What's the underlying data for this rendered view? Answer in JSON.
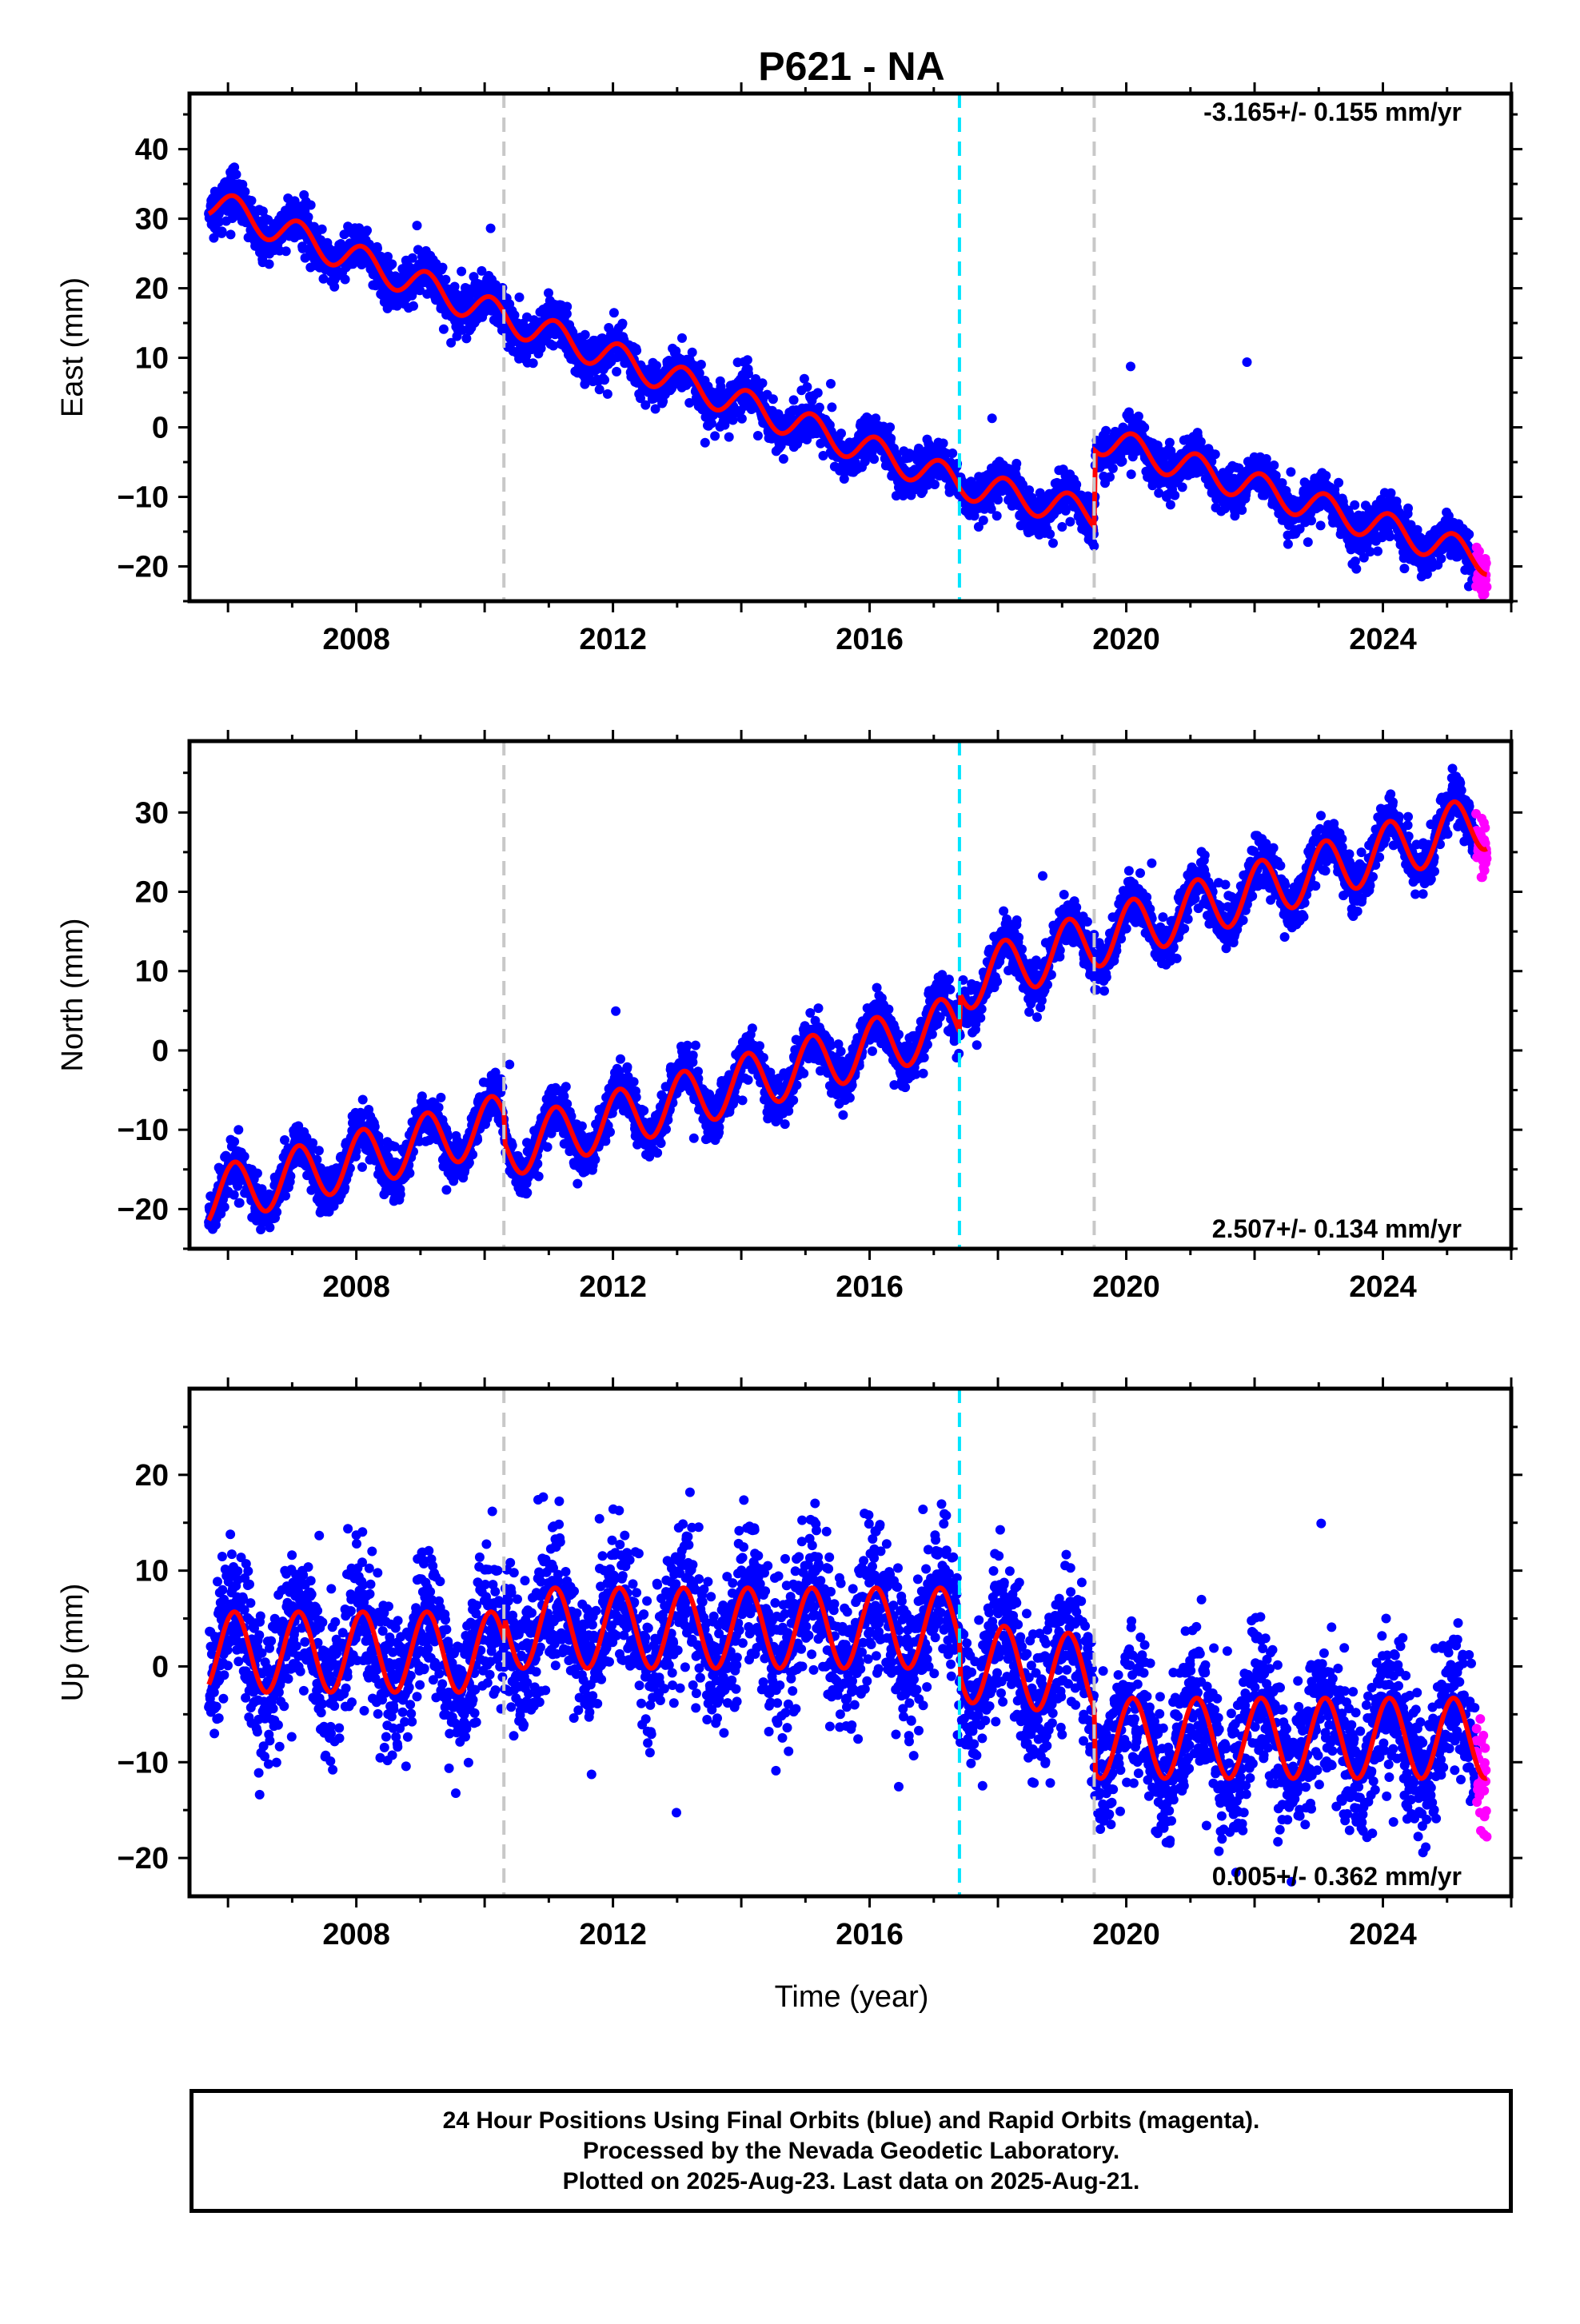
{
  "title": "P621 - NA",
  "xlabel": "Time (year)",
  "caption": [
    "24 Hour Positions Using Final Orbits (blue) and Rapid Orbits (magenta).",
    "Processed by the Nevada Geodetic Laboratory.",
    "Plotted on 2025-Aug-23. Last data on 2025-Aug-21."
  ],
  "colors": {
    "final": "#0000ff",
    "rapid": "#ff00ff",
    "model": "#ff0000",
    "equipment_change": "#c8c8c8",
    "earthquake": "#00e5ff"
  },
  "chart_data": [
    {
      "type": "scatter",
      "component": "east",
      "ylabel": "East (mm)",
      "xlim": [
        2005.4,
        2026.0
      ],
      "ylim": [
        -25,
        48
      ],
      "xticks": [
        2008,
        2012,
        2016,
        2020,
        2024
      ],
      "yticks": [
        -20,
        -10,
        0,
        10,
        20,
        30,
        40
      ],
      "rate_label": "-3.165+/- 0.155 mm/yr",
      "rate_label_position": "top-right",
      "start_year": 2005.7,
      "end_year": 2025.62,
      "rapid_start_year": 2025.45,
      "velocity_mm_per_yr": -3.165,
      "annual_amplitude_mm": 2.2,
      "scatter_mm": 1.6,
      "model_knots": [
        [
          2005.7,
          32.5
        ],
        [
          2010.3,
          15.8
        ],
        [
          2017.4,
          -8.0
        ],
        [
          2019.5,
          -12.5
        ],
        [
          2019.52,
          -1.5
        ],
        [
          2025.62,
          -19.0
        ]
      ],
      "offsets": [
        {
          "year": 2019.5,
          "east_mm": 11.0
        }
      ],
      "vlines": [
        {
          "year": 2010.3,
          "kind": "equipment_change"
        },
        {
          "year": 2017.4,
          "kind": "earthquake"
        },
        {
          "year": 2019.5,
          "kind": "equipment_change"
        }
      ]
    },
    {
      "type": "scatter",
      "component": "north",
      "ylabel": "North (mm)",
      "xlim": [
        2005.4,
        2026.0
      ],
      "ylim": [
        -25,
        39
      ],
      "xticks": [
        2008,
        2012,
        2016,
        2020,
        2024
      ],
      "yticks": [
        -20,
        -10,
        0,
        10,
        20,
        30
      ],
      "rate_label": "2.507+/- 0.134 mm/yr",
      "rate_label_position": "bottom-right",
      "start_year": 2005.7,
      "end_year": 2025.62,
      "rapid_start_year": 2025.45,
      "velocity_mm_per_yr": 2.507,
      "annual_amplitude_mm": 3.6,
      "scatter_mm": 1.5,
      "model_knots": [
        [
          2005.7,
          -18.5
        ],
        [
          2010.3,
          -9.0
        ],
        [
          2010.32,
          -12.5
        ],
        [
          2017.4,
          3.5
        ],
        [
          2017.42,
          8.5
        ],
        [
          2019.5,
          14.0
        ],
        [
          2025.62,
          29.0
        ]
      ],
      "vlines": [
        {
          "year": 2010.3,
          "kind": "equipment_change"
        },
        {
          "year": 2017.4,
          "kind": "earthquake"
        },
        {
          "year": 2019.5,
          "kind": "equipment_change"
        }
      ]
    },
    {
      "type": "scatter",
      "component": "up",
      "ylabel": "Up (mm)",
      "xlim": [
        2005.4,
        2026.0
      ],
      "ylim": [
        -24,
        29
      ],
      "xticks": [
        2008,
        2012,
        2016,
        2020,
        2024
      ],
      "yticks": [
        -20,
        -10,
        0,
        10,
        20
      ],
      "rate_label": "0.005+/- 0.362 mm/yr",
      "rate_label_position": "bottom-right",
      "start_year": 2005.7,
      "end_year": 2025.62,
      "rapid_start_year": 2025.45,
      "velocity_mm_per_yr": 0.005,
      "annual_amplitude_mm": 4.2,
      "scatter_mm": 3.8,
      "model_knots": [
        [
          2005.7,
          1.5
        ],
        [
          2010.3,
          1.5
        ],
        [
          2010.32,
          4.0
        ],
        [
          2017.4,
          4.0
        ],
        [
          2017.42,
          0.5
        ],
        [
          2019.5,
          -1.0
        ],
        [
          2019.52,
          -7.5
        ],
        [
          2025.62,
          -7.5
        ]
      ],
      "vlines": [
        {
          "year": 2010.3,
          "kind": "equipment_change"
        },
        {
          "year": 2017.4,
          "kind": "earthquake"
        },
        {
          "year": 2019.5,
          "kind": "equipment_change"
        }
      ]
    }
  ]
}
